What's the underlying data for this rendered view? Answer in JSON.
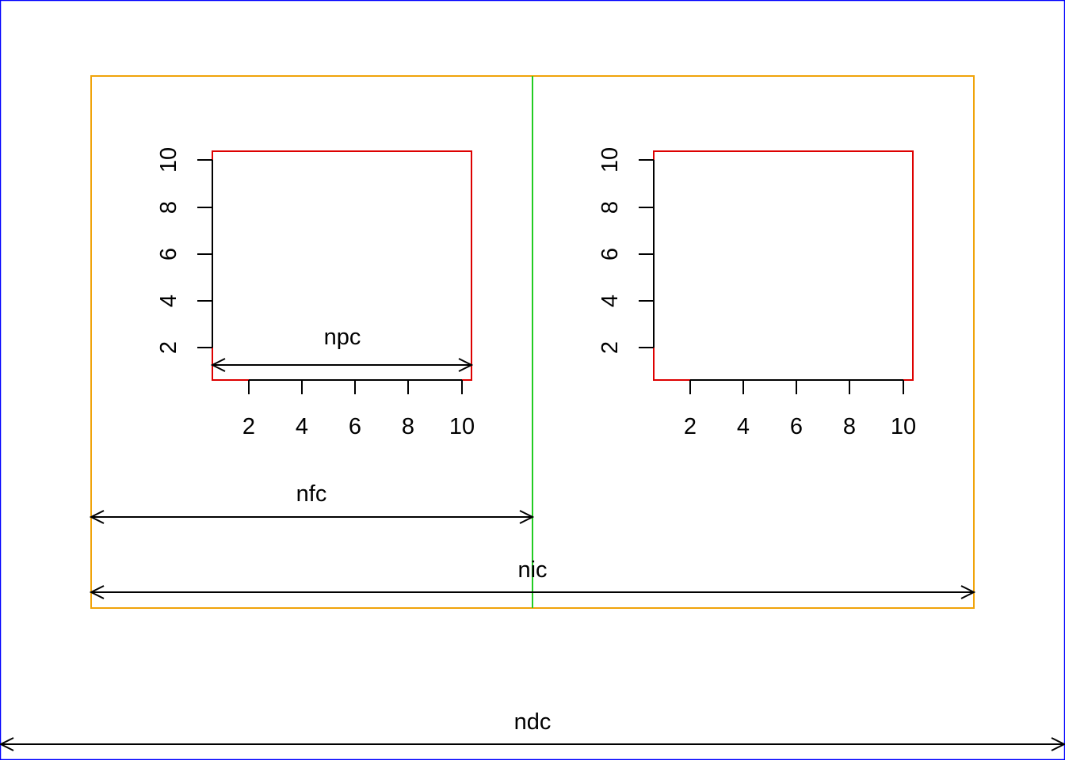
{
  "colors": {
    "device_border": "#0000ff",
    "inner_region": "#f0a30a",
    "figure_divider": "#22cc22",
    "plot_region": "#dd0000",
    "ink": "#000000"
  },
  "labels": {
    "npc": "npc",
    "nfc": "nfc",
    "nic": "nic",
    "ndc": "ndc"
  },
  "panels": [
    {
      "x_ticks": [
        "2",
        "4",
        "6",
        "8",
        "10"
      ],
      "y_ticks": [
        "2",
        "4",
        "6",
        "8",
        "10"
      ]
    },
    {
      "x_ticks": [
        "2",
        "4",
        "6",
        "8",
        "10"
      ],
      "y_ticks": [
        "2",
        "4",
        "6",
        "8",
        "10"
      ]
    }
  ]
}
